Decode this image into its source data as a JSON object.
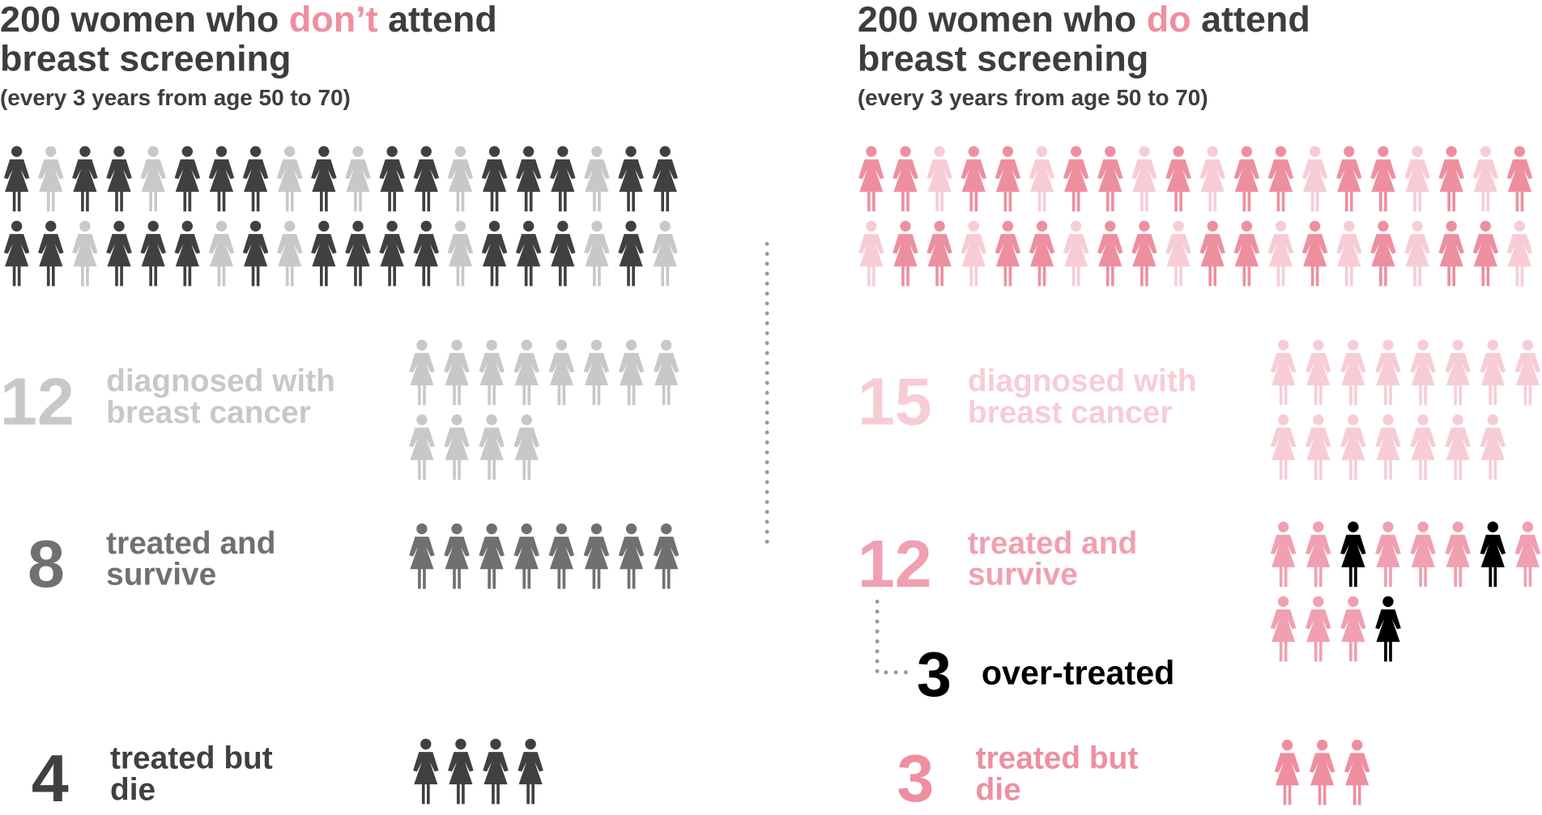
{
  "left": {
    "title": {
      "before": "200 women who",
      "highlight": "don’t",
      "after": "attend",
      "line2": "breast screening"
    },
    "subtitle": "(every 3 years from age 50 to 70)",
    "groups": [
      {
        "count": 12,
        "label": [
          "diagnosed with",
          "breast cancer"
        ]
      },
      {
        "count": 8,
        "label": [
          "treated and",
          "survive"
        ]
      },
      {
        "count": 4,
        "label": [
          "treated but",
          "die"
        ]
      }
    ]
  },
  "right": {
    "title": {
      "before": "200 women who",
      "highlight": "do",
      "after": "attend",
      "line2": "breast screening"
    },
    "subtitle": "(every 3 years from age 50 to 70)",
    "groups": [
      {
        "count": 15,
        "label": [
          "diagnosed with",
          "breast cancer"
        ]
      },
      {
        "count": 12,
        "label": [
          "treated and",
          "survive"
        ]
      },
      {
        "count": 3,
        "label": [
          "treated but",
          "die"
        ]
      }
    ],
    "over_treated": {
      "count": 3,
      "label": "over-treated"
    }
  }
}
